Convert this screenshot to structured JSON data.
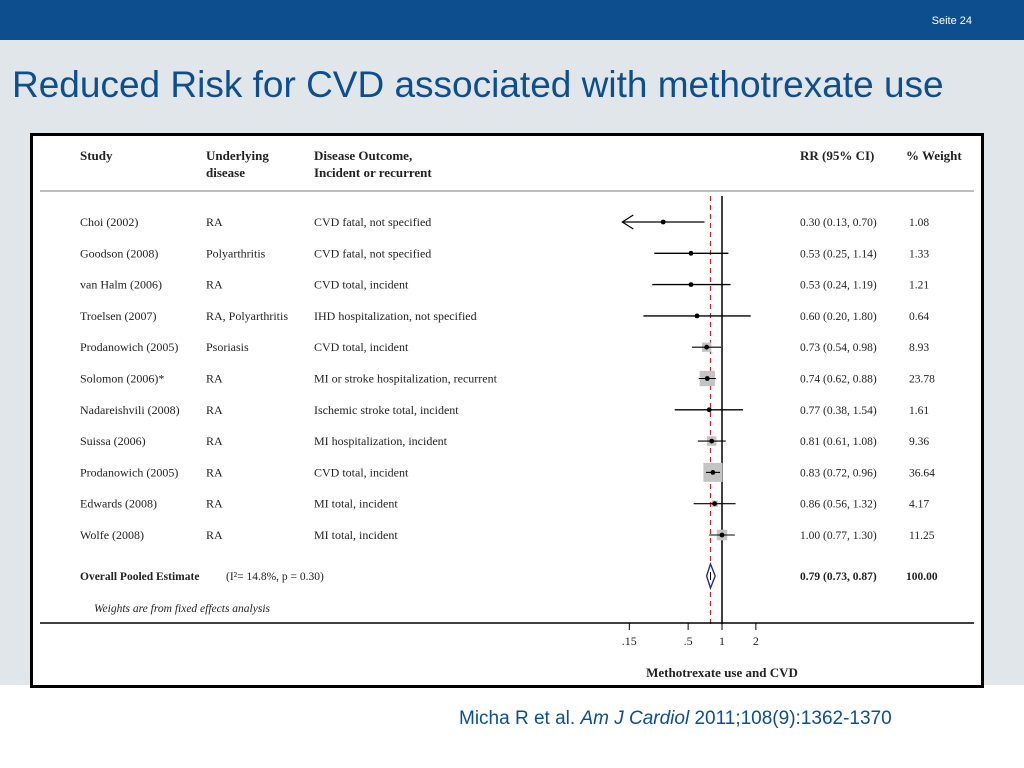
{
  "slide": {
    "page_label": "Seite 24",
    "title": "Reduced Risk for CVD associated with methotrexate use",
    "citation": {
      "authors": "Micha R et al.",
      "journal": "Am J Cardiol",
      "ref": "2011;108(9):1362-1370"
    },
    "colors": {
      "brand_blue": "#0c4e8e",
      "band_gray": "#e1e6ea",
      "weight_box": "#c4c4c4",
      "reference_line": "#c0282d",
      "diamond": "#2b2e7a"
    }
  },
  "chart_data": {
    "type": "forest",
    "columns": {
      "study": "Study",
      "disease_1": "Underlying",
      "disease_2": "disease",
      "outcome_1": "Disease Outcome,",
      "outcome_2": "Incident or recurrent",
      "rr": "RR (95% CI)",
      "weight": "% Weight"
    },
    "scale": "log",
    "x_ticks": [
      {
        "value": 0.15,
        "label": ".15"
      },
      {
        "value": 0.5,
        "label": ".5"
      },
      {
        "value": 1,
        "label": "1"
      },
      {
        "value": 2,
        "label": "2"
      }
    ],
    "xlabel": "Methotrexate use and CVD",
    "null_line": 1,
    "pooled_line": 0.79,
    "studies": [
      {
        "study": "Choi (2002)",
        "disease": "RA",
        "outcome": "CVD fatal, not specified",
        "rr": 0.3,
        "lo": 0.13,
        "hi": 0.7,
        "rr_text": "0.30 (0.13, 0.70)",
        "weight": 1.08,
        "weight_text": "1.08",
        "truncated_left": true
      },
      {
        "study": "Goodson (2008)",
        "disease": "Polyarthritis",
        "outcome": "CVD fatal, not specified",
        "rr": 0.53,
        "lo": 0.25,
        "hi": 1.14,
        "rr_text": "0.53 (0.25, 1.14)",
        "weight": 1.33,
        "weight_text": "1.33"
      },
      {
        "study": "van Halm (2006)",
        "disease": "RA",
        "outcome": "CVD total, incident",
        "rr": 0.53,
        "lo": 0.24,
        "hi": 1.19,
        "rr_text": "0.53 (0.24, 1.19)",
        "weight": 1.21,
        "weight_text": "1.21"
      },
      {
        "study": "Troelsen (2007)",
        "disease": "RA, Polyarthritis",
        "outcome": "IHD hospitalization, not specified",
        "rr": 0.6,
        "lo": 0.2,
        "hi": 1.8,
        "rr_text": "0.60 (0.20, 1.80)",
        "weight": 0.64,
        "weight_text": "0.64"
      },
      {
        "study": "Prodanowich (2005)",
        "disease": "Psoriasis",
        "outcome": "CVD total, incident",
        "rr": 0.73,
        "lo": 0.54,
        "hi": 0.98,
        "rr_text": "0.73 (0.54, 0.98)",
        "weight": 8.93,
        "weight_text": "8.93"
      },
      {
        "study": "Solomon (2006)*",
        "disease": "RA",
        "outcome": "MI or stroke hospitalization, recurrent",
        "rr": 0.74,
        "lo": 0.62,
        "hi": 0.88,
        "rr_text": "0.74 (0.62, 0.88)",
        "weight": 23.78,
        "weight_text": "23.78"
      },
      {
        "study": "Nadareishvili (2008)",
        "disease": "RA",
        "outcome": "Ischemic stroke total, incident",
        "rr": 0.77,
        "lo": 0.38,
        "hi": 1.54,
        "rr_text": "0.77 (0.38, 1.54)",
        "weight": 1.61,
        "weight_text": "1.61"
      },
      {
        "study": "Suissa (2006)",
        "disease": "RA",
        "outcome": "MI hospitalization, incident",
        "rr": 0.81,
        "lo": 0.61,
        "hi": 1.08,
        "rr_text": "0.81 (0.61, 1.08)",
        "weight": 9.36,
        "weight_text": "9.36"
      },
      {
        "study": "Prodanowich (2005)",
        "disease": "RA",
        "outcome": "CVD total, incident",
        "rr": 0.83,
        "lo": 0.72,
        "hi": 0.96,
        "rr_text": "0.83 (0.72, 0.96)",
        "weight": 36.64,
        "weight_text": "36.64"
      },
      {
        "study": "Edwards (2008)",
        "disease": "RA",
        "outcome": "MI total, incident",
        "rr": 0.86,
        "lo": 0.56,
        "hi": 1.32,
        "rr_text": "0.86 (0.56, 1.32)",
        "weight": 4.17,
        "weight_text": "4.17"
      },
      {
        "study": "Wolfe (2008)",
        "disease": "RA",
        "outcome": "MI total, incident",
        "rr": 1.0,
        "lo": 0.77,
        "hi": 1.3,
        "rr_text": "1.00 (0.77, 1.30)",
        "weight": 11.25,
        "weight_text": "11.25"
      }
    ],
    "overall": {
      "label": "Overall Pooled Estimate",
      "heterogeneity": "(I²= 14.8%, p = 0.30)",
      "rr": 0.79,
      "lo": 0.73,
      "hi": 0.87,
      "rr_text": "0.79 (0.73, 0.87)",
      "weight_text": "100.00"
    },
    "footnote": "Weights are from fixed effects analysis"
  }
}
